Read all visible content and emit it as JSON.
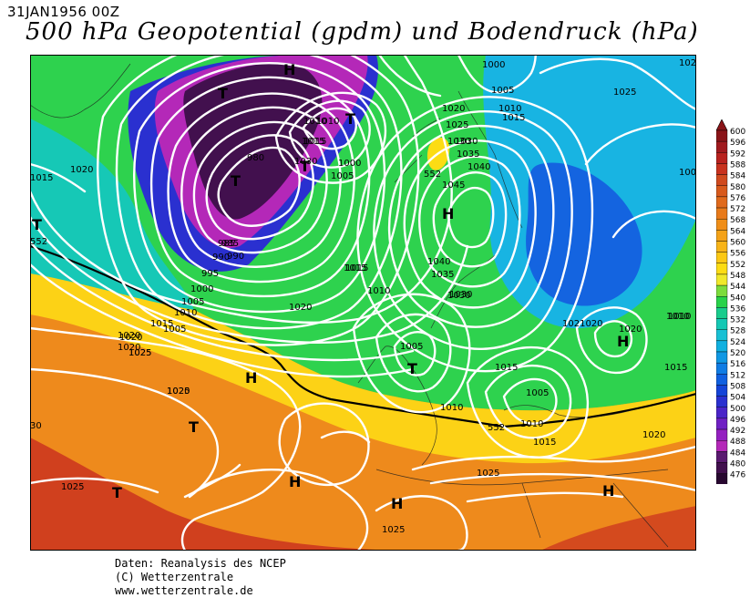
{
  "header": {
    "date": "31JAN1956 00Z",
    "title": "500 hPa Geopotential (gpdm) und Bodendruck (hPa)"
  },
  "credits": [
    "Daten: Reanalysis des NCEP",
    "(C) Wetterzentrale",
    "www.wetterzentrale.de"
  ],
  "legend": {
    "values": [
      "600",
      "596",
      "592",
      "588",
      "584",
      "580",
      "576",
      "572",
      "568",
      "564",
      "560",
      "556",
      "552",
      "548",
      "544",
      "540",
      "536",
      "532",
      "528",
      "524",
      "520",
      "516",
      "512",
      "508",
      "504",
      "500",
      "496",
      "492",
      "488",
      "484",
      "480",
      "476"
    ],
    "colors": [
      "#8a1418",
      "#a01a1e",
      "#b8221e",
      "#c8321e",
      "#d04a1e",
      "#d85a1c",
      "#e06a1c",
      "#e87a1a",
      "#f08e18",
      "#f4a218",
      "#f8b418",
      "#fcc814",
      "#fcdc14",
      "#f0e82a",
      "#7cdc3c",
      "#28d24a",
      "#18cc8c",
      "#14c8b4",
      "#18c0d4",
      "#10b0e0",
      "#1098e4",
      "#107ce4",
      "#1060e0",
      "#1444d8",
      "#2a30d0",
      "#4a24c8",
      "#7020c4",
      "#9420c0",
      "#b428b8",
      "#5a1a70",
      "#42104e",
      "#280830"
    ]
  },
  "map": {
    "highs": [
      {
        "label": "H",
        "note": "north"
      },
      {
        "label": "H",
        "note": "scandinavia"
      },
      {
        "label": "H",
        "note": "azores"
      },
      {
        "label": "H",
        "note": "iberia"
      },
      {
        "label": "H",
        "note": "algeria"
      },
      {
        "label": "H",
        "note": "libya"
      },
      {
        "label": "H",
        "note": "caspian"
      }
    ],
    "lows": [
      {
        "label": "T",
        "note": "greenland-n"
      },
      {
        "label": "T",
        "note": "greenland-s"
      },
      {
        "label": "T",
        "note": "iceland"
      },
      {
        "label": "T",
        "note": "norway-sea"
      },
      {
        "label": "T",
        "note": "atlantic-w"
      },
      {
        "label": "T",
        "note": "atlantic-sw"
      },
      {
        "label": "T",
        "note": "central-europe"
      },
      {
        "label": "T",
        "note": "black-sea"
      }
    ],
    "isobar_labels": [
      "985",
      "990",
      "995",
      "1000",
      "1005",
      "1010",
      "1015",
      "1020",
      "1025",
      "1030",
      "1035",
      "1040",
      "1045",
      "1021020",
      "1015",
      "1020",
      "1025",
      "1010",
      "1005",
      "1015",
      "1020",
      "1025",
      "1030",
      "30",
      "1025",
      "1010",
      "1000",
      "1005",
      "1015",
      "1020",
      "1025",
      "1030",
      "1035",
      "1040",
      "1005",
      "1010",
      "1015",
      "1020",
      "1025",
      "1010",
      "1015",
      "1020",
      "1025",
      "1005",
      "1010",
      "1015",
      "1020",
      "1000",
      "1005",
      "1010",
      "1015",
      "1020",
      "1025",
      "102",
      "1010",
      "1015",
      "1020",
      "1005",
      "985",
      "980",
      "990",
      "1010",
      "1015",
      "1030",
      "1030"
    ],
    "contour_labels": [
      "552",
      "552",
      "552"
    ]
  }
}
